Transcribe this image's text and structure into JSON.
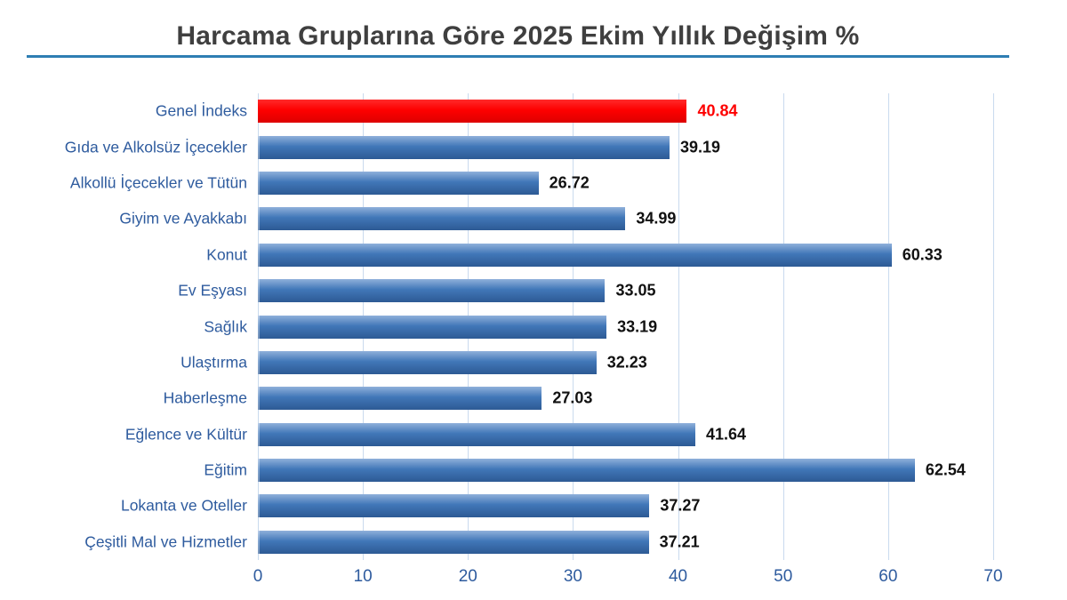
{
  "chart_data": {
    "type": "bar",
    "orientation": "horizontal",
    "title": "Harcama Gruplarına Göre 2025 Ekim Yıllık Değişim %",
    "categories": [
      "Genel İndeks",
      "Gıda ve Alkolsüz İçecekler",
      "Alkollü İçecekler ve Tütün",
      "Giyim ve Ayakkabı",
      "Konut",
      "Ev Eşyası",
      "Sağlık",
      "Ulaştırma",
      "Haberleşme",
      "Eğlence ve Kültür",
      "Eğitim",
      "Lokanta ve Oteller",
      "Çeşitli Mal ve Hizmetler"
    ],
    "values": [
      40.84,
      39.19,
      26.72,
      34.99,
      60.33,
      33.05,
      33.19,
      32.23,
      27.03,
      41.64,
      62.54,
      37.27,
      37.21
    ],
    "value_labels": [
      "40.84",
      "39.19",
      "26.72",
      "34.99",
      "60.33",
      "33.05",
      "33.19",
      "32.23",
      "27.03",
      "41.64",
      "62.54",
      "37.27",
      "37.21"
    ],
    "highlight_index": 0,
    "xlim": [
      0,
      70
    ],
    "x_ticks": [
      "0",
      "10",
      "20",
      "30",
      "40",
      "50",
      "60",
      "70"
    ],
    "grid": true,
    "legend": "none",
    "colors": {
      "background": "#ffffff",
      "bar_gradient_top": "#8fb0da",
      "bar_gradient_mid": "#4177b8",
      "bar_gradient_bottom": "#2d5a94",
      "highlight_bar": "#fe0000",
      "highlight_value_label": "#fe0000",
      "category_label": "#2e5b9e",
      "tick_label": "#2e5b9e",
      "value_label": "#111111",
      "gridline": "#c9daee",
      "title_text": "#3f3f3f",
      "title_underline": "#2e7eb3"
    }
  }
}
